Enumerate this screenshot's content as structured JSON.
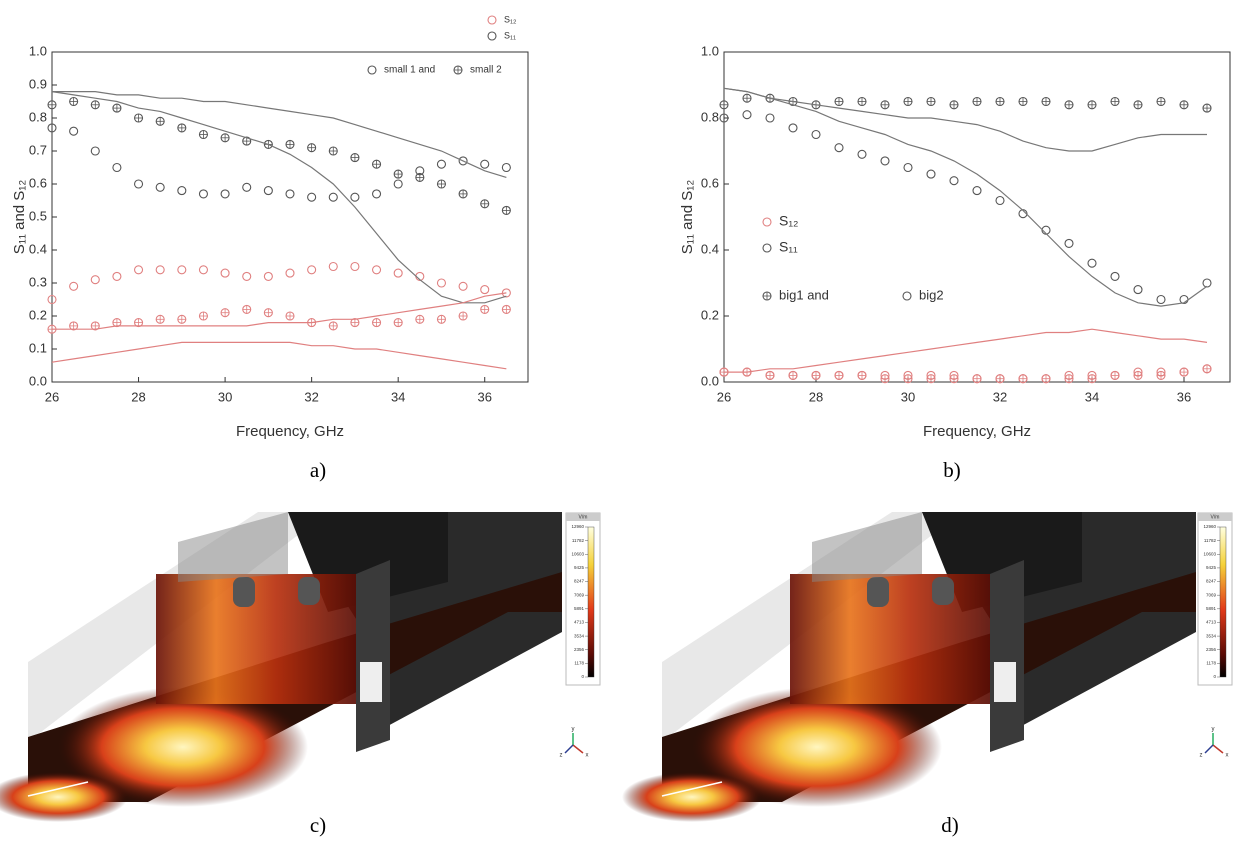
{
  "chart_data": [
    {
      "type": "scatter",
      "x_label": "Frequency, GHz",
      "y_label": "S₁₁ and S₁₂",
      "x": [
        26,
        26.5,
        27,
        27.5,
        28,
        28.5,
        29,
        29.5,
        30,
        30.5,
        31,
        31.5,
        32,
        32.5,
        33,
        33.5,
        34,
        34.5,
        35,
        35.5,
        36,
        36.5
      ],
      "xlim": [
        26,
        37
      ],
      "xticks": [
        26,
        28,
        30,
        32,
        34,
        36
      ],
      "ylim": [
        0,
        1
      ],
      "yticks": [
        {
          "value": 0,
          "label": "0.0"
        },
        {
          "value": 0.1,
          "label": "0.1"
        },
        {
          "value": 0.2,
          "label": "0.2"
        },
        {
          "value": 0.3,
          "label": "0.3"
        },
        {
          "value": 0.4,
          "label": "0.4"
        },
        {
          "value": 0.5,
          "label": "0.5"
        },
        {
          "value": 0.6,
          "label": "0.6"
        },
        {
          "value": 0.7,
          "label": "0.7"
        },
        {
          "value": 0.8,
          "label": "0.8"
        },
        {
          "value": 0.9,
          "label": "0.9"
        },
        {
          "value": 1,
          "label": "1.0"
        }
      ],
      "series": [
        {
          "color": "#e08080",
          "mode": "markers",
          "marker": "circle",
          "values": [
            0.25,
            0.29,
            0.31,
            0.32,
            0.34,
            0.34,
            0.34,
            0.34,
            0.33,
            0.32,
            0.32,
            0.33,
            0.34,
            0.35,
            0.35,
            0.34,
            0.33,
            0.32,
            0.3,
            0.29,
            0.28,
            0.27
          ]
        },
        {
          "color": "#e08080",
          "mode": "markers",
          "marker": "crossed",
          "values": [
            0.16,
            0.17,
            0.17,
            0.18,
            0.18,
            0.19,
            0.19,
            0.2,
            0.21,
            0.22,
            0.21,
            0.2,
            0.18,
            0.17,
            0.18,
            0.18,
            0.18,
            0.19,
            0.19,
            0.2,
            0.22,
            0.22
          ]
        },
        {
          "color": "#555555",
          "mode": "markers",
          "marker": "circle",
          "values": [
            0.77,
            0.76,
            0.7,
            0.65,
            0.6,
            0.59,
            0.58,
            0.57,
            0.57,
            0.59,
            0.58,
            0.57,
            0.56,
            0.56,
            0.56,
            0.57,
            0.6,
            0.64,
            0.66,
            0.67,
            0.66,
            0.65
          ]
        },
        {
          "color": "#555555",
          "mode": "markers",
          "marker": "crossed",
          "values": [
            0.84,
            0.85,
            0.84,
            0.83,
            0.8,
            0.79,
            0.77,
            0.75,
            0.74,
            0.73,
            0.72,
            0.72,
            0.71,
            0.7,
            0.68,
            0.66,
            0.63,
            0.62,
            0.6,
            0.57,
            0.54,
            0.52
          ]
        },
        {
          "color": "#777777",
          "mode": "line",
          "values": [
            0.88,
            0.88,
            0.88,
            0.87,
            0.87,
            0.86,
            0.86,
            0.85,
            0.85,
            0.84,
            0.83,
            0.82,
            0.81,
            0.8,
            0.78,
            0.76,
            0.74,
            0.72,
            0.7,
            0.67,
            0.64,
            0.62
          ]
        },
        {
          "color": "#777777",
          "mode": "line",
          "values": [
            0.88,
            0.87,
            0.86,
            0.85,
            0.83,
            0.82,
            0.8,
            0.78,
            0.76,
            0.74,
            0.72,
            0.69,
            0.65,
            0.6,
            0.53,
            0.45,
            0.37,
            0.31,
            0.26,
            0.24,
            0.24,
            0.26
          ]
        },
        {
          "color": "#e08080",
          "mode": "line",
          "values": [
            0.16,
            0.16,
            0.16,
            0.17,
            0.17,
            0.17,
            0.17,
            0.17,
            0.17,
            0.17,
            0.18,
            0.18,
            0.18,
            0.19,
            0.19,
            0.2,
            0.21,
            0.22,
            0.23,
            0.24,
            0.26,
            0.27
          ]
        },
        {
          "color": "#e08080",
          "mode": "line",
          "values": [
            0.06,
            0.07,
            0.08,
            0.09,
            0.1,
            0.11,
            0.12,
            0.12,
            0.12,
            0.12,
            0.12,
            0.12,
            0.11,
            0.11,
            0.1,
            0.1,
            0.09,
            0.08,
            0.07,
            0.06,
            0.05,
            0.04
          ]
        }
      ],
      "legend": [
        {
          "label": "S₁₂",
          "color": "#e08080",
          "marker": "circle"
        },
        {
          "label": "S₁₁",
          "color": "#555555",
          "marker": "circle"
        },
        {
          "label": "small 1 and",
          "color": "#555555",
          "marker": "circle"
        },
        {
          "label": "small 2",
          "color": "#555555",
          "marker": "crossed"
        }
      ]
    },
    {
      "type": "scatter",
      "x_label": "Frequency, GHz",
      "y_label": "S₁₁ and S₁₂",
      "x": [
        26,
        26.5,
        27,
        27.5,
        28,
        28.5,
        29,
        29.5,
        30,
        30.5,
        31,
        31.5,
        32,
        32.5,
        33,
        33.5,
        34,
        34.5,
        35,
        35.5,
        36,
        36.5
      ],
      "xlim": [
        26,
        37
      ],
      "xticks": [
        26,
        28,
        30,
        32,
        34,
        36
      ],
      "ylim": [
        0,
        1
      ],
      "yticks": [
        {
          "value": 0,
          "label": "0.0"
        },
        {
          "value": 0.2,
          "label": "0.2"
        },
        {
          "value": 0.4,
          "label": "0.4"
        },
        {
          "value": 0.6,
          "label": "0.6"
        },
        {
          "value": 0.8,
          "label": "0.8"
        },
        {
          "value": 1,
          "label": "1.0"
        }
      ],
      "series": [
        {
          "color": "#555555",
          "mode": "markers",
          "marker": "crossed",
          "values": [
            0.84,
            0.86,
            0.86,
            0.85,
            0.84,
            0.85,
            0.85,
            0.84,
            0.85,
            0.85,
            0.84,
            0.85,
            0.85,
            0.85,
            0.85,
            0.84,
            0.84,
            0.85,
            0.84,
            0.85,
            0.84,
            0.83
          ]
        },
        {
          "color": "#555555",
          "mode": "markers",
          "marker": "circle",
          "values": [
            0.8,
            0.81,
            0.8,
            0.77,
            0.75,
            0.71,
            0.69,
            0.67,
            0.65,
            0.63,
            0.61,
            0.58,
            0.55,
            0.51,
            0.46,
            0.42,
            0.36,
            0.32,
            0.28,
            0.25,
            0.25,
            0.3
          ]
        },
        {
          "color": "#777777",
          "mode": "line",
          "values": [
            0.89,
            0.88,
            0.86,
            0.85,
            0.84,
            0.83,
            0.82,
            0.81,
            0.8,
            0.8,
            0.79,
            0.78,
            0.76,
            0.73,
            0.71,
            0.7,
            0.7,
            0.72,
            0.74,
            0.75,
            0.75,
            0.75
          ]
        },
        {
          "color": "#777777",
          "mode": "line",
          "values": [
            0.89,
            0.88,
            0.86,
            0.84,
            0.82,
            0.79,
            0.77,
            0.75,
            0.72,
            0.7,
            0.67,
            0.63,
            0.58,
            0.52,
            0.45,
            0.38,
            0.32,
            0.27,
            0.24,
            0.23,
            0.24,
            0.29
          ]
        },
        {
          "color": "#e08080",
          "mode": "markers",
          "marker": "crossed",
          "values": [
            0.03,
            0.03,
            0.02,
            0.02,
            0.02,
            0.02,
            0.02,
            0.01,
            0.01,
            0.01,
            0.01,
            0.01,
            0.01,
            0.01,
            0.01,
            0.01,
            0.01,
            0.02,
            0.02,
            0.02,
            0.03,
            0.04
          ]
        },
        {
          "color": "#e08080",
          "mode": "markers",
          "marker": "circle",
          "values": [
            0.03,
            0.03,
            0.02,
            0.02,
            0.02,
            0.02,
            0.02,
            0.02,
            0.02,
            0.02,
            0.02,
            0.01,
            0.01,
            0.01,
            0.01,
            0.02,
            0.02,
            0.02,
            0.03,
            0.03,
            0.03,
            0.04
          ]
        },
        {
          "color": "#e08080",
          "mode": "line",
          "values": [
            0.03,
            0.03,
            0.04,
            0.04,
            0.05,
            0.06,
            0.07,
            0.08,
            0.09,
            0.1,
            0.11,
            0.12,
            0.13,
            0.14,
            0.15,
            0.15,
            0.16,
            0.15,
            0.14,
            0.13,
            0.13,
            0.12
          ]
        }
      ],
      "legend": [
        {
          "label": "S₁₂",
          "color": "#e08080",
          "marker": "circle"
        },
        {
          "label": "S₁₁",
          "color": "#555555",
          "marker": "circle"
        },
        {
          "label": "big1 and",
          "color": "#555555",
          "marker": "crossed"
        },
        {
          "label": "big2",
          "color": "#555555",
          "marker": "circle"
        }
      ]
    }
  ],
  "panel_labels": [
    "a)",
    "b)",
    "c)",
    "d)"
  ],
  "field_maps": [
    {
      "unit": "V/m",
      "ticks": [
        12960,
        11782,
        10603,
        9425,
        8247,
        7069,
        5891,
        4713,
        3534,
        2356,
        1178,
        0
      ],
      "axes": [
        "x",
        "y",
        "z"
      ]
    },
    {
      "unit": "V/m",
      "ticks": [
        12960,
        11782,
        10603,
        9425,
        8247,
        7069,
        5891,
        4713,
        3534,
        2356,
        1178,
        0
      ],
      "axes": [
        "x",
        "y",
        "z"
      ]
    }
  ]
}
